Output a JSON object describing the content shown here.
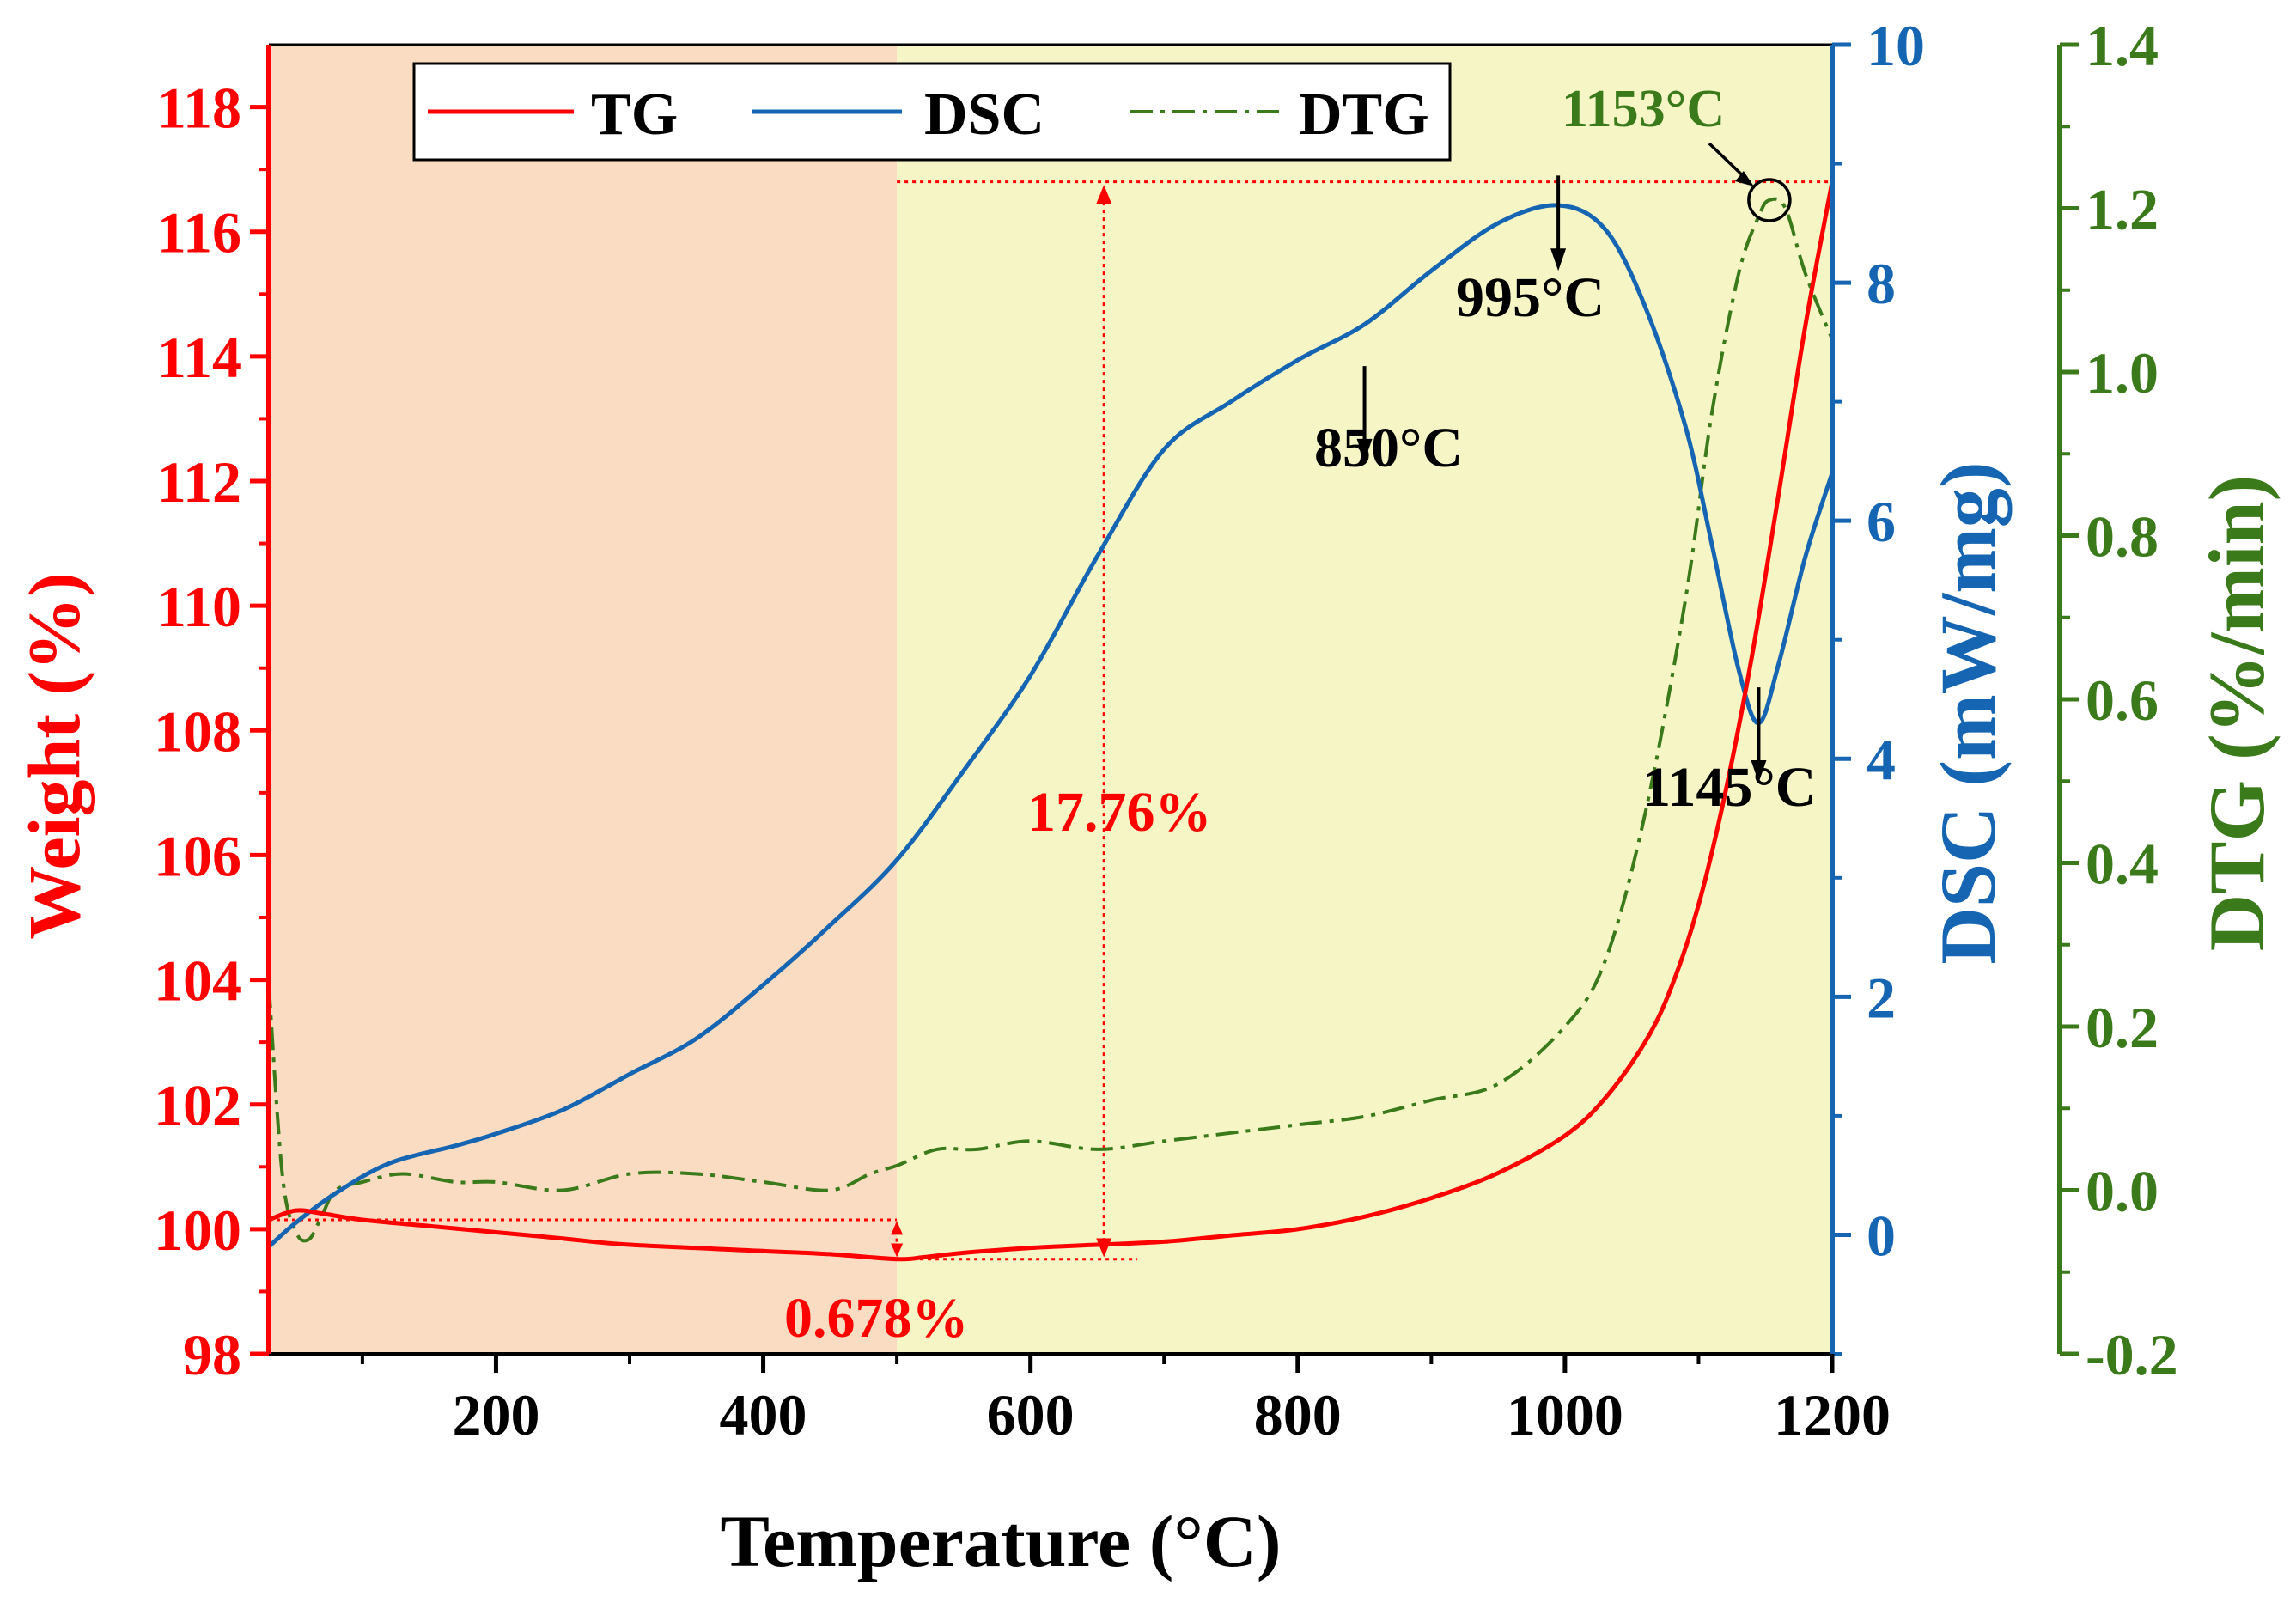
{
  "chart_data": {
    "type": "line",
    "xlabel": "Temperature (°C)",
    "xlim": [
      30,
      1200
    ],
    "x_ticks": [
      "200",
      "400",
      "600",
      "800",
      "1000",
      "1200"
    ],
    "x_tick_values": [
      200,
      400,
      600,
      800,
      1000,
      1200
    ],
    "axes": {
      "weight": {
        "label": "Weight (%)",
        "ylim": [
          98,
          119
        ],
        "ticks": [
          "98",
          "100",
          "102",
          "104",
          "106",
          "108",
          "110",
          "112",
          "114",
          "116",
          "118"
        ],
        "tick_values": [
          98,
          100,
          102,
          104,
          106,
          108,
          110,
          112,
          114,
          116,
          118
        ]
      },
      "dsc": {
        "label": "DSC (mW/mg)",
        "ylim": [
          -1,
          10
        ],
        "ticks": [
          "0",
          "2",
          "4",
          "6",
          "8",
          "10"
        ],
        "tick_values": [
          0,
          2,
          4,
          6,
          8,
          10
        ]
      },
      "dtg": {
        "label": "DTG (%/min)",
        "ylim": [
          -0.2,
          1.4
        ],
        "ticks": [
          "-0.2",
          "0.0",
          "0.2",
          "0.4",
          "0.6",
          "0.8",
          "1.0",
          "1.2",
          "1.4"
        ],
        "tick_values": [
          -0.2,
          0.0,
          0.2,
          0.4,
          0.6,
          0.8,
          1.0,
          1.2,
          1.4
        ]
      }
    },
    "regions": [
      {
        "name": "orange",
        "x_range": [
          30,
          500
        ],
        "color": "#f9dcc1"
      },
      {
        "name": "yellow",
        "x_range": [
          500,
          1200
        ],
        "color": "#f5f5c6"
      }
    ],
    "series": [
      {
        "name": "TG",
        "axis": "weight",
        "color": "#ff0000",
        "style": "solid",
        "x": [
          30,
          50,
          70,
          100,
          150,
          200,
          250,
          300,
          400,
          450,
          500,
          520,
          550,
          600,
          650,
          700,
          750,
          800,
          850,
          900,
          950,
          1000,
          1030,
          1060,
          1080,
          1100,
          1120,
          1140,
          1160,
          1180,
          1200
        ],
        "y": [
          100.15,
          100.3,
          100.25,
          100.15,
          100.05,
          99.95,
          99.85,
          99.75,
          99.65,
          99.6,
          99.52,
          99.55,
          99.62,
          99.7,
          99.75,
          99.8,
          99.9,
          100.0,
          100.2,
          100.5,
          100.9,
          101.5,
          102.1,
          103.0,
          103.9,
          105.2,
          107.0,
          109.2,
          111.8,
          114.5,
          116.8
        ]
      },
      {
        "name": "DSC",
        "axis": "dsc",
        "color": "#1565b2",
        "style": "solid",
        "x": [
          30,
          50,
          80,
          120,
          170,
          200,
          250,
          300,
          350,
          400,
          450,
          500,
          550,
          600,
          650,
          700,
          750,
          800,
          850,
          900,
          950,
          995,
          1030,
          1060,
          1090,
          1110,
          1130,
          1145,
          1160,
          1180,
          1200
        ],
        "y": [
          -0.1,
          0.1,
          0.35,
          0.6,
          0.75,
          0.85,
          1.05,
          1.35,
          1.65,
          2.1,
          2.6,
          3.15,
          3.9,
          4.7,
          5.7,
          6.6,
          7.0,
          7.35,
          7.65,
          8.1,
          8.5,
          8.65,
          8.45,
          7.8,
          6.8,
          5.8,
          4.75,
          4.3,
          4.8,
          5.7,
          6.4
        ]
      },
      {
        "name": "DTG",
        "axis": "dtg",
        "color": "#3b7a1a",
        "style": "dashdot",
        "x": [
          30,
          40,
          50,
          60,
          70,
          80,
          100,
          130,
          170,
          200,
          250,
          300,
          350,
          400,
          450,
          480,
          500,
          530,
          560,
          600,
          650,
          700,
          750,
          800,
          850,
          900,
          950,
          1000,
          1030,
          1060,
          1090,
          1110,
          1130,
          1145,
          1153,
          1165,
          1180,
          1200
        ],
        "y": [
          0.25,
          0.02,
          -0.05,
          -0.06,
          -0.03,
          0.0,
          0.01,
          0.02,
          0.01,
          0.01,
          0.0,
          0.02,
          0.02,
          0.01,
          0.0,
          0.02,
          0.03,
          0.05,
          0.05,
          0.06,
          0.05,
          0.06,
          0.07,
          0.08,
          0.09,
          0.11,
          0.13,
          0.2,
          0.28,
          0.46,
          0.72,
          0.95,
          1.12,
          1.19,
          1.21,
          1.2,
          1.12,
          1.04
        ]
      }
    ],
    "legend": {
      "position": "top",
      "entries": [
        "TG",
        "DSC",
        "DTG"
      ]
    },
    "annotations": {
      "peak_850": "850°C",
      "peak_995": "995°C",
      "peak_1145": "1145°C",
      "peak_1153": "1153°C",
      "loss_small": "0.678%",
      "gain_large": "17.76%"
    }
  },
  "colors": {
    "weight_axis": "#ff0000",
    "dsc_axis": "#1565b2",
    "dtg_axis": "#3b7a1a",
    "annotation": "#000000"
  }
}
